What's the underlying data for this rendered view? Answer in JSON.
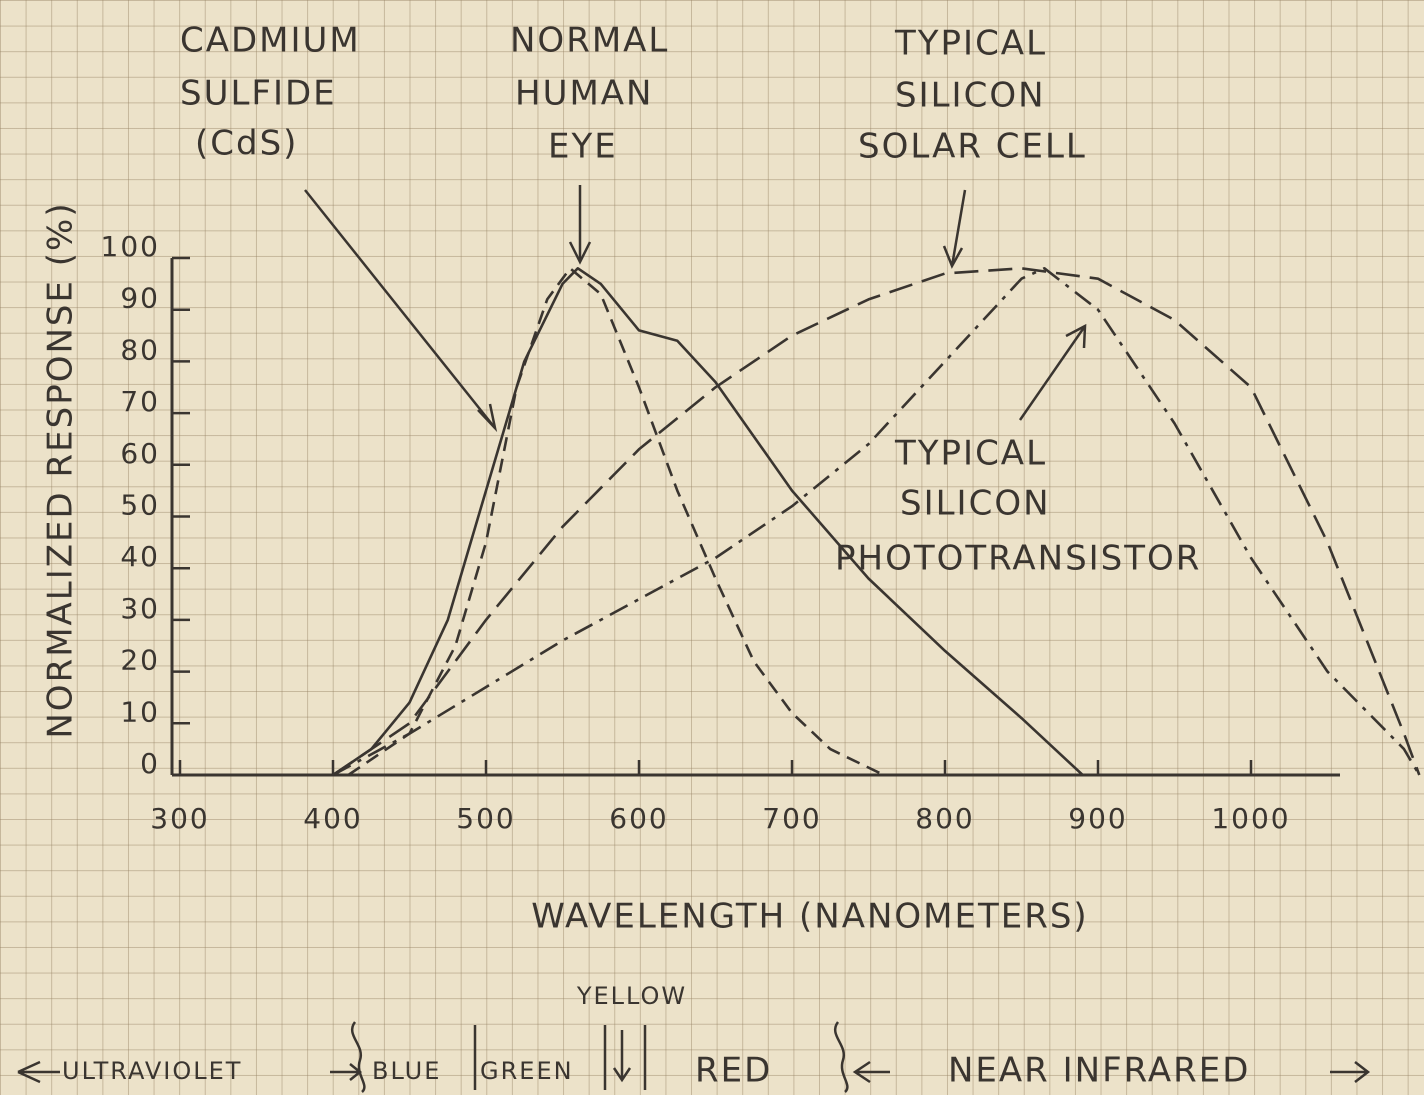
{
  "chart_data": {
    "type": "line",
    "x_label": "WAVELENGTH (NANOMETERS)",
    "y_label": "NORMALIZED RESPONSE (%)",
    "xlim": [
      300,
      1110
    ],
    "ylim": [
      0,
      100
    ],
    "xticks": [
      300,
      400,
      500,
      600,
      700,
      800,
      900,
      1000
    ],
    "yticks": [
      0,
      10,
      20,
      30,
      40,
      50,
      60,
      70,
      80,
      90,
      100
    ],
    "color": "#3a3530",
    "series": [
      {
        "label": [
          "CADMIUM",
          "SULFIDE",
          "(CdS)"
        ],
        "dash": "none",
        "x": [
          400,
          425,
          450,
          475,
          500,
          525,
          550,
          560,
          575,
          600,
          625,
          650,
          700,
          750,
          800,
          850,
          890
        ],
        "values": [
          0,
          5,
          14,
          30,
          55,
          80,
          95,
          98,
          95,
          86,
          84,
          76,
          55,
          38,
          24,
          11,
          0
        ]
      },
      {
        "label": [
          "NORMAL",
          "HUMAN",
          "EYE"
        ],
        "dash": "14,8",
        "x": [
          410,
          450,
          480,
          500,
          520,
          540,
          555,
          575,
          600,
          625,
          650,
          675,
          700,
          725,
          760
        ],
        "values": [
          0,
          8,
          25,
          45,
          75,
          92,
          98,
          93,
          75,
          55,
          38,
          22,
          12,
          5,
          0
        ]
      },
      {
        "label": [
          "TYPICAL",
          "SILICON",
          "SOLAR CELL"
        ],
        "dash": "24,10",
        "x": [
          400,
          450,
          500,
          550,
          600,
          650,
          700,
          750,
          800,
          850,
          900,
          950,
          1000,
          1050,
          1100,
          1110
        ],
        "values": [
          0,
          10,
          30,
          48,
          63,
          75,
          85,
          92,
          97,
          98,
          96,
          88,
          75,
          45,
          8,
          0
        ]
      },
      {
        "label": [
          "TYPICAL",
          "SILICON",
          "PHOTOTRANSISTOR"
        ],
        "dash": "20,8,4,8",
        "x": [
          400,
          450,
          500,
          550,
          600,
          650,
          700,
          750,
          800,
          850,
          865,
          900,
          950,
          1000,
          1050,
          1100,
          1110
        ],
        "values": [
          0,
          8,
          17,
          26,
          34,
          42,
          52,
          64,
          80,
          96,
          98,
          90,
          68,
          42,
          20,
          5,
          0
        ]
      }
    ],
    "spectrum": [
      "ULTRAVIOLET",
      "BLUE",
      "GREEN",
      "YELLOW",
      "RED",
      "NEAR INFRARED"
    ]
  }
}
